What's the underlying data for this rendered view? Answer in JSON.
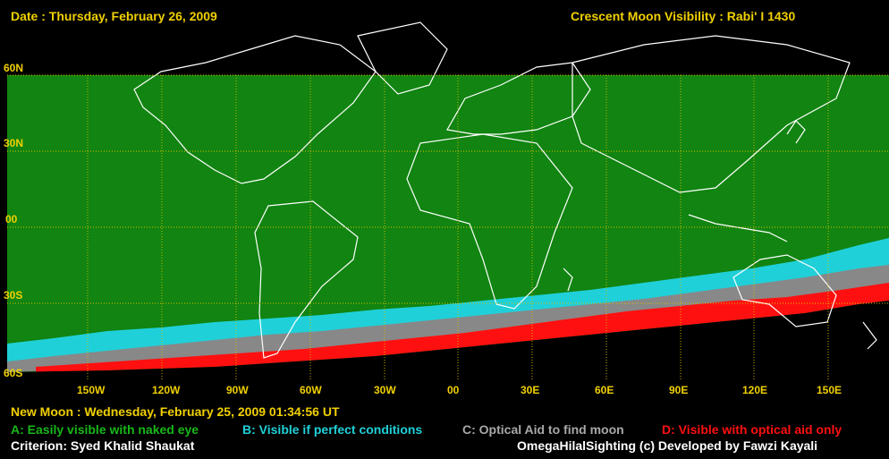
{
  "header": {
    "date": "Date : Thursday, February 26, 2009",
    "title": "Crescent Moon Visibility : Rabi' I  1430"
  },
  "map": {
    "lat_labels": [
      "60N",
      "30N",
      "00",
      "30S",
      "60S"
    ],
    "lon_labels": [
      "150W",
      "120W",
      "90W",
      "60W",
      "30W",
      "00",
      "30E",
      "60E",
      "90E",
      "120E",
      "150E"
    ],
    "colors": {
      "zone_a": "#118411",
      "zone_b": "#20d0d8",
      "zone_c": "#888888",
      "zone_d": "#ff1010",
      "none": "#000000",
      "grid": "#d8c000",
      "coast": "#ffffff"
    }
  },
  "footer": {
    "new_moon": "New Moon : Wednesday, February 25, 2009  01:34:56  UT",
    "legend_a": "A: Easily visible with naked eye",
    "legend_b": "B: Visible if perfect conditions",
    "legend_c": "C: Optical Aid to find moon",
    "legend_d": "D: Visible with optical aid only",
    "criterion": "Criterion: Syed Khalid Shaukat",
    "credit": "OmegaHilalSighting  (c)  Developed by Fawzi Kayali"
  }
}
